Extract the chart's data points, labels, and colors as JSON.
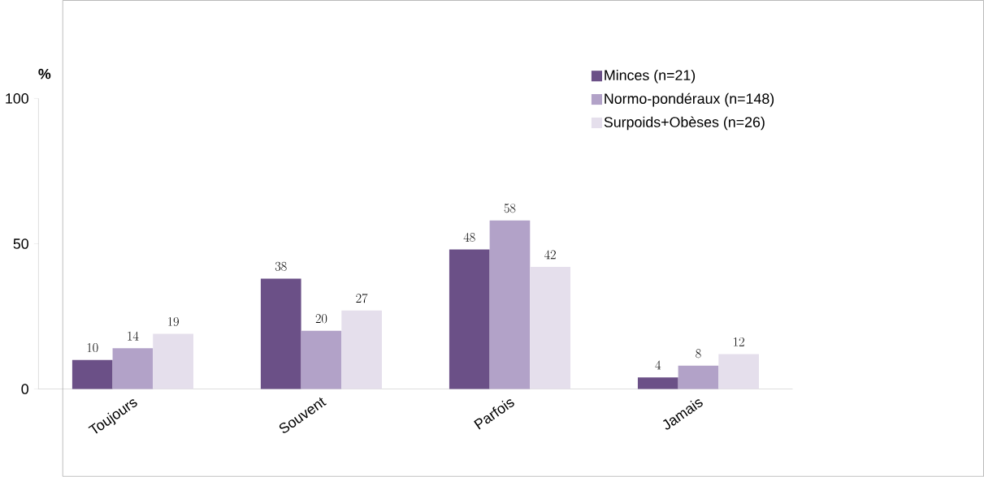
{
  "chart_data": {
    "type": "bar",
    "ylabel": "%",
    "categories": [
      "Toujours",
      "Souvent",
      "Parfois",
      "Jamais"
    ],
    "series": [
      {
        "name": "Minces (n=21)",
        "color": "#6b5087",
        "values": [
          10,
          38,
          48,
          4
        ]
      },
      {
        "name": "Normo-pondéraux  (n=148)",
        "color": "#b2a2c8",
        "values": [
          14,
          20,
          58,
          8
        ]
      },
      {
        "name": "Surpoids+Obèses (n=26)",
        "color": "#e5dfec",
        "values": [
          19,
          27,
          42,
          12
        ]
      }
    ],
    "ylim": [
      0,
      100
    ],
    "yticks": [
      0,
      50,
      100
    ],
    "data_labels": true,
    "legend": "top right",
    "grid": false
  }
}
